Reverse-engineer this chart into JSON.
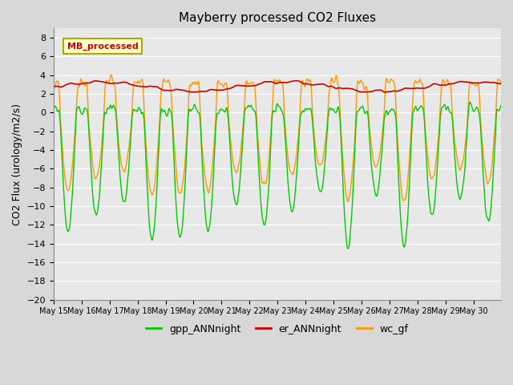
{
  "title": "Mayberry processed CO2 Fluxes",
  "ylabel": "CO2 Flux (urology/m2/s)",
  "ylim": [
    -20,
    9
  ],
  "yticks": [
    -20,
    -18,
    -16,
    -14,
    -12,
    -10,
    -8,
    -6,
    -4,
    -2,
    0,
    2,
    4,
    6,
    8
  ],
  "fig_bg_color": "#d8d8d8",
  "plot_bg_color": "#e8e8e8",
  "legend_label": "MB_processed",
  "legend_bg": "#ffffcc",
  "legend_border": "#cccc00",
  "legend_text_color": "#cc0000",
  "series_colors": {
    "gpp": "#00cc00",
    "er": "#cc0000",
    "wc": "#ff9900"
  },
  "legend_items": [
    {
      "label": "gpp_ANNnight",
      "color": "#00cc00"
    },
    {
      "label": "er_ANNnight",
      "color": "#cc0000"
    },
    {
      "label": "wc_gf",
      "color": "#ff9900"
    }
  ],
  "n_days": 16,
  "pts_per_day": 48,
  "seed": 42
}
